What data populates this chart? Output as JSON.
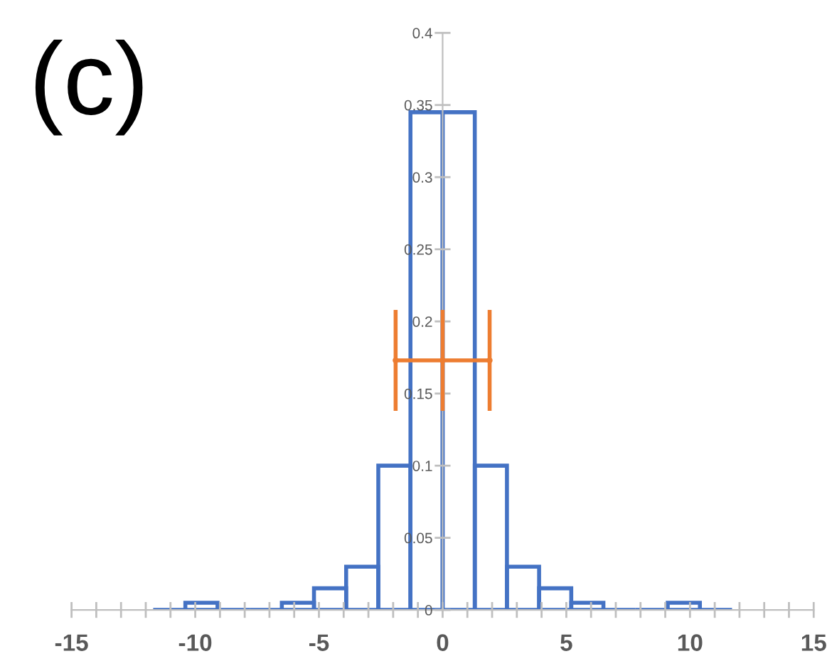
{
  "chart_data": {
    "type": "histogram",
    "annotations": [
      "(c)"
    ],
    "bins": [
      -11.7,
      -10.4,
      -9.1,
      -7.8,
      -6.5,
      -5.2,
      -3.9,
      -2.6,
      -1.3,
      0,
      1.3,
      2.6,
      3.9,
      5.2,
      6.5,
      7.8,
      9.1,
      10.4,
      11.7
    ],
    "series": [
      {
        "color": "#4472c4",
        "values": [
          0,
          0.005,
          0,
          0,
          0.005,
          0.015,
          0.03,
          0.1,
          0.345,
          0.345,
          0.1,
          0.03,
          0.015,
          0.005,
          0,
          0,
          0.005,
          0
        ]
      },
      {
        "type": "scatter",
        "color": "#ed7d31",
        "x": [
          -1.9,
          0,
          1.9
        ],
        "values": [
          0.173,
          0.173,
          0.173
        ],
        "errors": [
          0.035,
          0.035,
          0.035
        ],
        "xerrors": [
          null,
          1.9,
          null
        ]
      }
    ],
    "xlim": [
      -15,
      15
    ],
    "ylim": [
      0,
      0.4
    ],
    "xticks": [
      -15,
      {
        "value": -14,
        "label": null
      },
      {
        "value": -13,
        "label": null
      },
      {
        "value": -12,
        "label": null
      },
      {
        "value": -11,
        "label": null
      },
      -10,
      {
        "value": -9,
        "label": null
      },
      {
        "value": -8,
        "label": null
      },
      {
        "value": -7,
        "label": null
      },
      {
        "value": -6,
        "label": null
      },
      -5,
      {
        "value": -4,
        "label": null
      },
      {
        "value": -3,
        "label": null
      },
      {
        "value": -2,
        "label": null
      },
      {
        "value": -1,
        "label": null
      },
      0,
      {
        "value": 1,
        "label": null
      },
      {
        "value": 2,
        "label": null
      },
      {
        "value": 3,
        "label": null
      },
      {
        "value": 4,
        "label": null
      },
      5,
      {
        "value": 6,
        "label": null
      },
      {
        "value": 7,
        "label": null
      },
      {
        "value": 8,
        "label": null
      },
      {
        "value": 9,
        "label": null
      },
      10,
      {
        "value": 11,
        "label": null
      },
      {
        "value": 12,
        "label": null
      },
      {
        "value": 13,
        "label": null
      },
      {
        "value": 14,
        "label": null
      },
      15
    ],
    "yticks": [
      0,
      0.05,
      0.1,
      0.15,
      0.2,
      0.25,
      0.3,
      0.35,
      0.4
    ],
    "grid": false,
    "legend": false
  }
}
